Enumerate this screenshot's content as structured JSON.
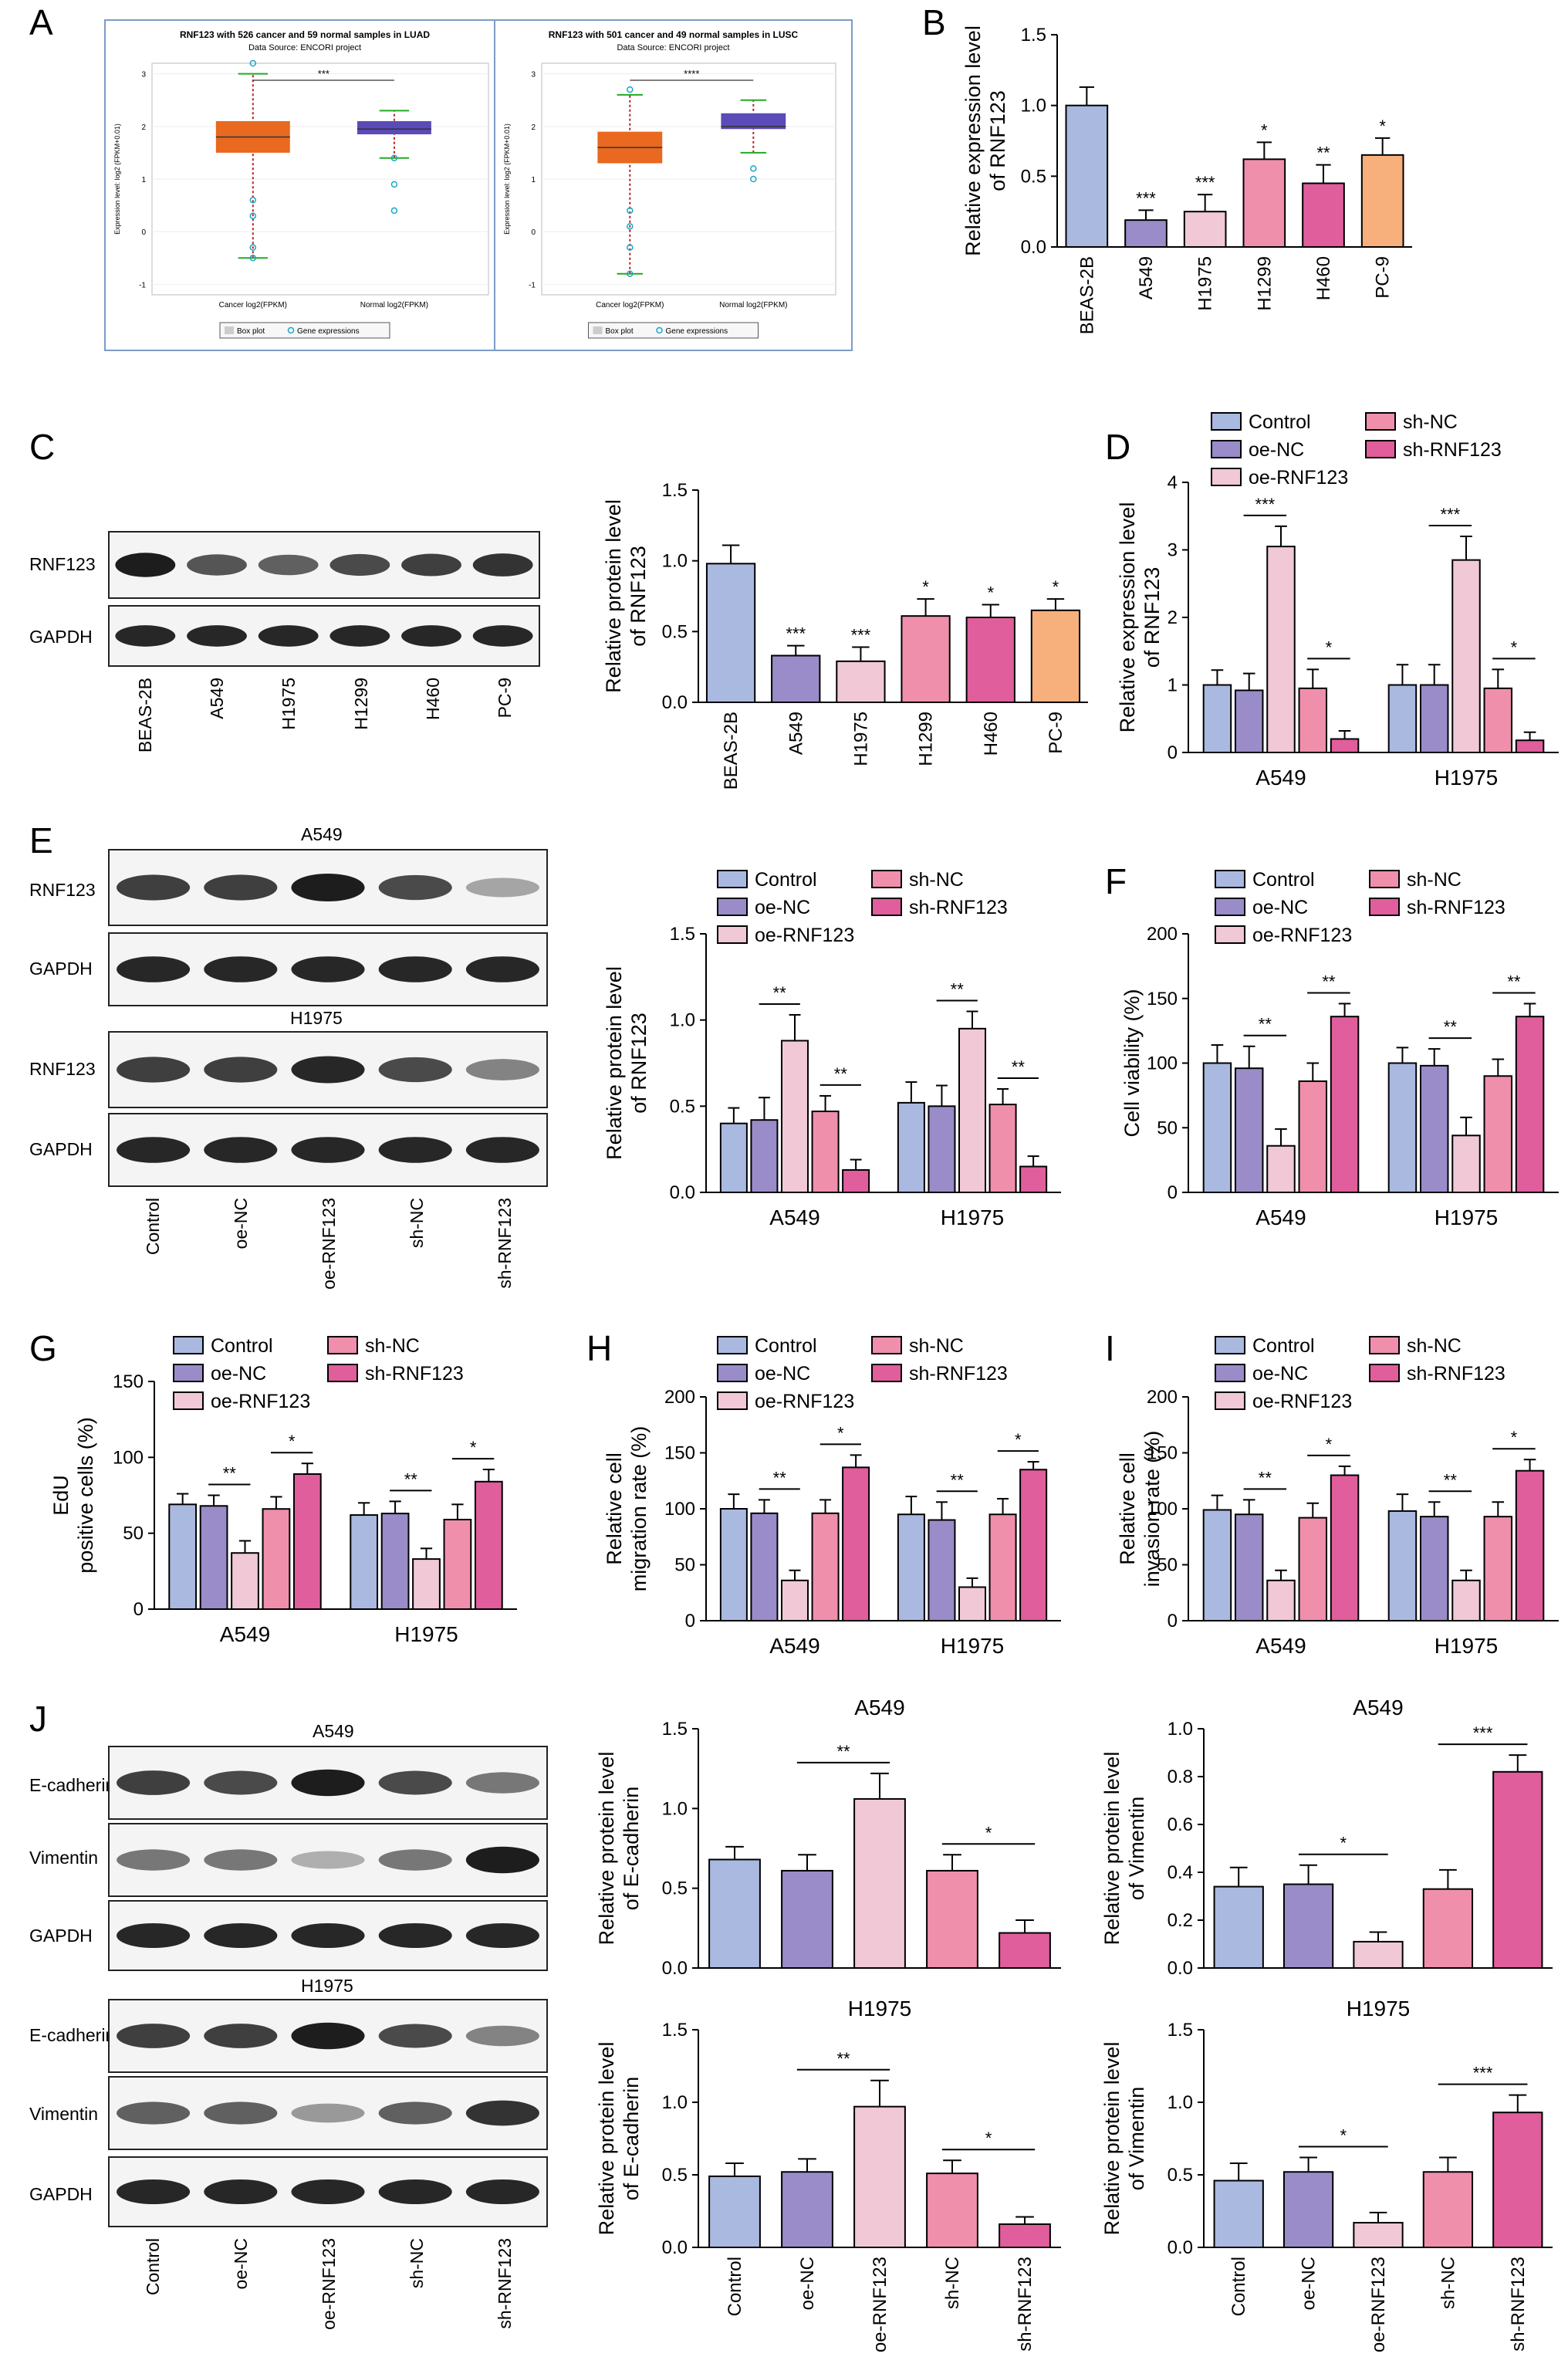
{
  "panel_labels": [
    "A",
    "B",
    "C",
    "D",
    "E",
    "F",
    "G",
    "H",
    "I",
    "J"
  ],
  "colors": {
    "Control": "#aab9e0",
    "oe-NC": "#9a8cc8",
    "oe-RNF123": "#f0c8d6",
    "sh-NC": "#ef8fac",
    "sh-RNF123": "#df5e9b",
    "BEAS-2B": "#aab9e0",
    "A549": "#9a8cc8",
    "H1975": "#f0c8d6",
    "H1299": "#ef8fac",
    "H460": "#df5e9b",
    "PC-9": "#f7b07c",
    "box_cancer": "#e8691f",
    "box_normal": "#5a4bb8"
  },
  "panelA": {
    "luad": {
      "title": "RNF123 with 526 cancer and 59 normal samples in LUAD",
      "subtitle": "Data Source: ENCORI project",
      "ylabel": "Expression level: log2 (FPKM+0.01)",
      "sig": "***",
      "xcats": [
        "Cancer log2(FPKM)",
        "Normal log2(FPKM)"
      ],
      "legend": [
        "Box plot",
        "Gene expressions"
      ]
    },
    "lusc": {
      "title": "RNF123 with 501 cancer and 49 normal samples in LUSC",
      "subtitle": "Data Source: ENCORI project",
      "ylabel": "Expression level: log2 (FPKM+0.01)",
      "sig": "****",
      "xcats": [
        "Cancer log2(FPKM)",
        "Normal log2(FPKM)"
      ],
      "legend": [
        "Box plot",
        "Gene expressions"
      ]
    }
  },
  "blots": {
    "C": {
      "rows": [
        "RNF123",
        "GAPDH"
      ],
      "lanes": [
        "BEAS-2B",
        "A549",
        "H1975",
        "H1299",
        "H460",
        "PC-9"
      ]
    },
    "E": {
      "groups": [
        "A549",
        "H1975"
      ],
      "rows": [
        "RNF123",
        "GAPDH"
      ],
      "lanes": [
        "Control",
        "oe-NC",
        "oe-RNF123",
        "sh-NC",
        "sh-RNF123"
      ]
    },
    "J": {
      "groups": [
        "A549",
        "H1975"
      ],
      "rows": [
        "E-cadherin",
        "Vimentin",
        "GAPDH"
      ],
      "lanes": [
        "Control",
        "oe-NC",
        "oe-RNF123",
        "sh-NC",
        "sh-RNF123"
      ]
    }
  },
  "chart_data": [
    {
      "id": "B",
      "type": "bar",
      "categories": [
        "BEAS-2B",
        "A549",
        "H1975",
        "H1299",
        "H460",
        "PC-9"
      ],
      "values": [
        1.0,
        0.19,
        0.25,
        0.62,
        0.45,
        0.65
      ],
      "errors": [
        0.13,
        0.07,
        0.12,
        0.12,
        0.13,
        0.12
      ],
      "sig": [
        "",
        "***",
        "***",
        "*",
        "**",
        "*"
      ],
      "ylabel": "Relative expression level of RNF123",
      "ylim": [
        0,
        1.5
      ],
      "yticks": [
        0.0,
        0.5,
        1.0,
        1.5
      ]
    },
    {
      "id": "C",
      "type": "bar",
      "categories": [
        "BEAS-2B",
        "A549",
        "H1975",
        "H1299",
        "H460",
        "PC-9"
      ],
      "values": [
        0.98,
        0.33,
        0.29,
        0.61,
        0.6,
        0.65
      ],
      "errors": [
        0.13,
        0.07,
        0.1,
        0.12,
        0.09,
        0.08
      ],
      "sig": [
        "",
        "***",
        "***",
        "*",
        "*",
        "*"
      ],
      "ylabel": "Relative protein level of RNF123",
      "ylim": [
        0,
        1.5
      ],
      "yticks": [
        0.0,
        0.5,
        1.0,
        1.5
      ]
    },
    {
      "id": "D",
      "type": "grouped-bar",
      "groups": [
        "A549",
        "H1975"
      ],
      "series_names": [
        "Control",
        "oe-NC",
        "oe-RNF123",
        "sh-NC",
        "sh-RNF123"
      ],
      "values": [
        [
          1.0,
          0.92,
          3.05,
          0.95,
          0.2
        ],
        [
          1.0,
          1.0,
          2.85,
          0.95,
          0.18
        ]
      ],
      "errors": [
        [
          0.22,
          0.25,
          0.3,
          0.28,
          0.12
        ],
        [
          0.3,
          0.3,
          0.35,
          0.28,
          0.12
        ]
      ],
      "sig": [
        {
          "pair": [
            1,
            2
          ],
          "label": "***"
        },
        {
          "pair": [
            3,
            4
          ],
          "label": "*"
        }
      ],
      "ylabel": "Relative expression level of RNF123",
      "ylim": [
        0,
        4
      ],
      "yticks": [
        0,
        1,
        2,
        3,
        4
      ]
    },
    {
      "id": "E",
      "type": "grouped-bar",
      "groups": [
        "A549",
        "H1975"
      ],
      "series_names": [
        "Control",
        "oe-NC",
        "oe-RNF123",
        "sh-NC",
        "sh-RNF123"
      ],
      "values": [
        [
          0.4,
          0.42,
          0.88,
          0.47,
          0.13
        ],
        [
          0.52,
          0.5,
          0.95,
          0.51,
          0.15
        ]
      ],
      "errors": [
        [
          0.09,
          0.13,
          0.15,
          0.09,
          0.06
        ],
        [
          0.12,
          0.12,
          0.1,
          0.09,
          0.06
        ]
      ],
      "sig": [
        {
          "pair": [
            1,
            2
          ],
          "label": "**"
        },
        {
          "pair": [
            3,
            4
          ],
          "label": "**"
        }
      ],
      "ylabel": "Relative protein level of RNF123",
      "ylim": [
        0,
        1.5
      ],
      "yticks": [
        0.0,
        0.5,
        1.0,
        1.5
      ]
    },
    {
      "id": "F",
      "type": "grouped-bar",
      "groups": [
        "A549",
        "H1975"
      ],
      "series_names": [
        "Control",
        "oe-NC",
        "oe-RNF123",
        "sh-NC",
        "sh-RNF123"
      ],
      "values": [
        [
          100,
          96,
          36,
          86,
          136
        ],
        [
          100,
          98,
          44,
          90,
          136
        ]
      ],
      "errors": [
        [
          14,
          17,
          13,
          14,
          10
        ],
        [
          12,
          13,
          14,
          13,
          10
        ]
      ],
      "sig": [
        {
          "pair": [
            1,
            2
          ],
          "label": "**"
        },
        {
          "pair": [
            3,
            4
          ],
          "label": "**"
        }
      ],
      "ylabel": "Cell viability (%)",
      "ylim": [
        0,
        200
      ],
      "yticks": [
        0,
        50,
        100,
        150,
        200
      ]
    },
    {
      "id": "G",
      "type": "grouped-bar",
      "groups": [
        "A549",
        "H1975"
      ],
      "series_names": [
        "Control",
        "oe-NC",
        "oe-RNF123",
        "sh-NC",
        "sh-RNF123"
      ],
      "values": [
        [
          69,
          68,
          37,
          66,
          89
        ],
        [
          62,
          63,
          33,
          59,
          84
        ]
      ],
      "errors": [
        [
          7,
          7,
          8,
          8,
          7
        ],
        [
          8,
          8,
          7,
          10,
          8
        ]
      ],
      "sig": [
        {
          "pair": [
            1,
            2
          ],
          "label": "**"
        },
        {
          "pair": [
            3,
            4
          ],
          "label": "*"
        }
      ],
      "ylabel": "EdU positive cells (%)",
      "ylim": [
        0,
        150
      ],
      "yticks": [
        0,
        50,
        100,
        150
      ]
    },
    {
      "id": "H",
      "type": "grouped-bar",
      "groups": [
        "A549",
        "H1975"
      ],
      "series_names": [
        "Control",
        "oe-NC",
        "oe-RNF123",
        "sh-NC",
        "sh-RNF123"
      ],
      "values": [
        [
          100,
          96,
          36,
          96,
          137
        ],
        [
          95,
          90,
          30,
          95,
          135
        ]
      ],
      "errors": [
        [
          13,
          12,
          9,
          12,
          11
        ],
        [
          16,
          16,
          8,
          14,
          7
        ]
      ],
      "sig": [
        {
          "pair": [
            1,
            2
          ],
          "label": "**"
        },
        {
          "pair": [
            3,
            4
          ],
          "label": "*"
        }
      ],
      "ylabel": "Relative cell migration rate (%)",
      "ylim": [
        0,
        200
      ],
      "yticks": [
        0,
        50,
        100,
        150,
        200
      ]
    },
    {
      "id": "I",
      "type": "grouped-bar",
      "groups": [
        "A549",
        "H1975"
      ],
      "series_names": [
        "Control",
        "oe-NC",
        "oe-RNF123",
        "sh-NC",
        "sh-RNF123"
      ],
      "values": [
        [
          99,
          95,
          36,
          92,
          130
        ],
        [
          98,
          93,
          36,
          93,
          134
        ]
      ],
      "errors": [
        [
          13,
          13,
          9,
          13,
          8
        ],
        [
          15,
          13,
          9,
          13,
          10
        ]
      ],
      "sig": [
        {
          "pair": [
            1,
            2
          ],
          "label": "**"
        },
        {
          "pair": [
            3,
            4
          ],
          "label": "*"
        }
      ],
      "ylabel": "Relative cell invasion rate (%)",
      "ylim": [
        0,
        200
      ],
      "yticks": [
        0,
        50,
        100,
        150,
        200
      ]
    },
    {
      "id": "J1",
      "type": "bar",
      "title": "A549",
      "categories": [
        "Control",
        "oe-NC",
        "oe-RNF123",
        "sh-NC",
        "sh-RNF123"
      ],
      "values": [
        0.68,
        0.61,
        1.06,
        0.61,
        0.22
      ],
      "errors": [
        0.08,
        0.1,
        0.16,
        0.1,
        0.08
      ],
      "sig": [
        {
          "pair": [
            1,
            2
          ],
          "label": "**"
        },
        {
          "pair": [
            3,
            4
          ],
          "label": "*"
        }
      ],
      "ylabel": "Relative protein level of E-cadherin",
      "ylim": [
        0,
        1.5
      ],
      "yticks": [
        0.0,
        0.5,
        1.0,
        1.5
      ]
    },
    {
      "id": "J2",
      "type": "bar",
      "title": "A549",
      "categories": [
        "Control",
        "oe-NC",
        "oe-RNF123",
        "sh-NC",
        "sh-RNF123"
      ],
      "values": [
        0.34,
        0.35,
        0.11,
        0.33,
        0.82
      ],
      "errors": [
        0.08,
        0.08,
        0.04,
        0.08,
        0.07
      ],
      "sig": [
        {
          "pair": [
            1,
            2
          ],
          "label": "*"
        },
        {
          "pair": [
            3,
            4
          ],
          "label": "***"
        }
      ],
      "ylabel": "Relative protein level of Vimentin",
      "ylim": [
        0,
        1.0
      ],
      "yticks": [
        0.0,
        0.2,
        0.4,
        0.6,
        0.8,
        1.0
      ]
    },
    {
      "id": "J3",
      "type": "bar",
      "title": "H1975",
      "categories": [
        "Control",
        "oe-NC",
        "oe-RNF123",
        "sh-NC",
        "sh-RNF123"
      ],
      "values": [
        0.49,
        0.52,
        0.97,
        0.51,
        0.16
      ],
      "errors": [
        0.09,
        0.09,
        0.18,
        0.09,
        0.05
      ],
      "sig": [
        {
          "pair": [
            1,
            2
          ],
          "label": "**"
        },
        {
          "pair": [
            3,
            4
          ],
          "label": "*"
        }
      ],
      "ylabel": "Relative protein level of E-cadherin",
      "ylim": [
        0,
        1.5
      ],
      "yticks": [
        0.0,
        0.5,
        1.0,
        1.5
      ]
    },
    {
      "id": "J4",
      "type": "bar",
      "title": "H1975",
      "categories": [
        "Control",
        "oe-NC",
        "oe-RNF123",
        "sh-NC",
        "sh-RNF123"
      ],
      "values": [
        0.46,
        0.52,
        0.17,
        0.52,
        0.93
      ],
      "errors": [
        0.12,
        0.1,
        0.07,
        0.1,
        0.12
      ],
      "sig": [
        {
          "pair": [
            1,
            2
          ],
          "label": "*"
        },
        {
          "pair": [
            3,
            4
          ],
          "label": "***"
        }
      ],
      "ylabel": "Relative protein level of Vimentin",
      "ylim": [
        0,
        1.5
      ],
      "yticks": [
        0.0,
        0.5,
        1.0,
        1.5
      ]
    }
  ]
}
